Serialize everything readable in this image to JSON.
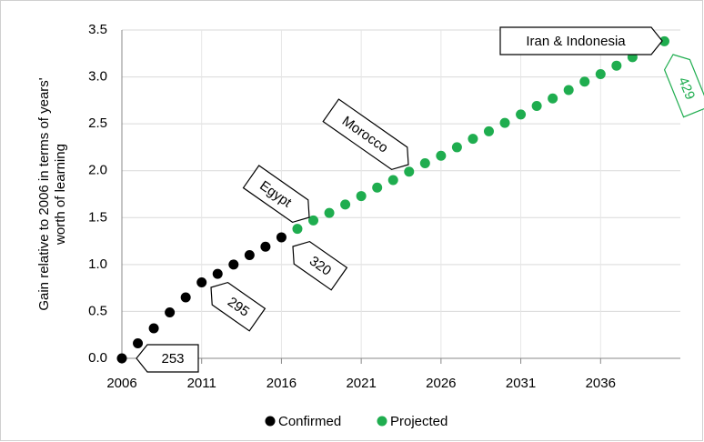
{
  "chart_data": {
    "type": "scatter",
    "ylabel": [
      "Gain relative to 2006 in terms of years'",
      "worth of learning"
    ],
    "xlim": [
      2006,
      2041
    ],
    "xticks": [
      2006,
      2011,
      2016,
      2021,
      2026,
      2031,
      2036
    ],
    "ylim": [
      0,
      3.5
    ],
    "yticks": [
      {
        "value": 0,
        "label": "0.0"
      },
      0.5,
      {
        "value": 1,
        "label": "1.0"
      },
      1.5,
      {
        "value": 2,
        "label": "2.0"
      },
      2.5,
      {
        "value": 3,
        "label": "3.0"
      },
      3.5
    ],
    "grid": true,
    "legend": "bottom",
    "series": [
      {
        "name": "Confirmed",
        "color": "#000000",
        "x": [
          2006,
          2007,
          2008,
          2009,
          2010,
          2011,
          2012,
          2013,
          2014,
          2015,
          2016
        ],
        "values": [
          0,
          0.16,
          0.32,
          0.49,
          0.65,
          0.81,
          0.9,
          1.0,
          1.1,
          1.19,
          1.29
        ]
      },
      {
        "name": "Projected",
        "color": "#1fad4f",
        "x": [
          2017,
          2018,
          2019,
          2020,
          2021,
          2022,
          2023,
          2024,
          2025,
          2026,
          2027,
          2028,
          2029,
          2030,
          2031,
          2032,
          2033,
          2034,
          2035,
          2036,
          2037,
          2038,
          2039,
          2040
        ],
        "values": [
          1.38,
          1.47,
          1.55,
          1.64,
          1.73,
          1.82,
          1.9,
          1.99,
          2.08,
          2.16,
          2.25,
          2.34,
          2.42,
          2.51,
          2.6,
          2.69,
          2.77,
          2.86,
          2.95,
          3.03,
          3.12,
          3.21,
          3.29,
          3.38
        ]
      }
    ],
    "annotations": [
      "253",
      "295",
      "320",
      "429",
      "Egypt",
      "Morocco",
      "Iran & Indonesia"
    ]
  }
}
